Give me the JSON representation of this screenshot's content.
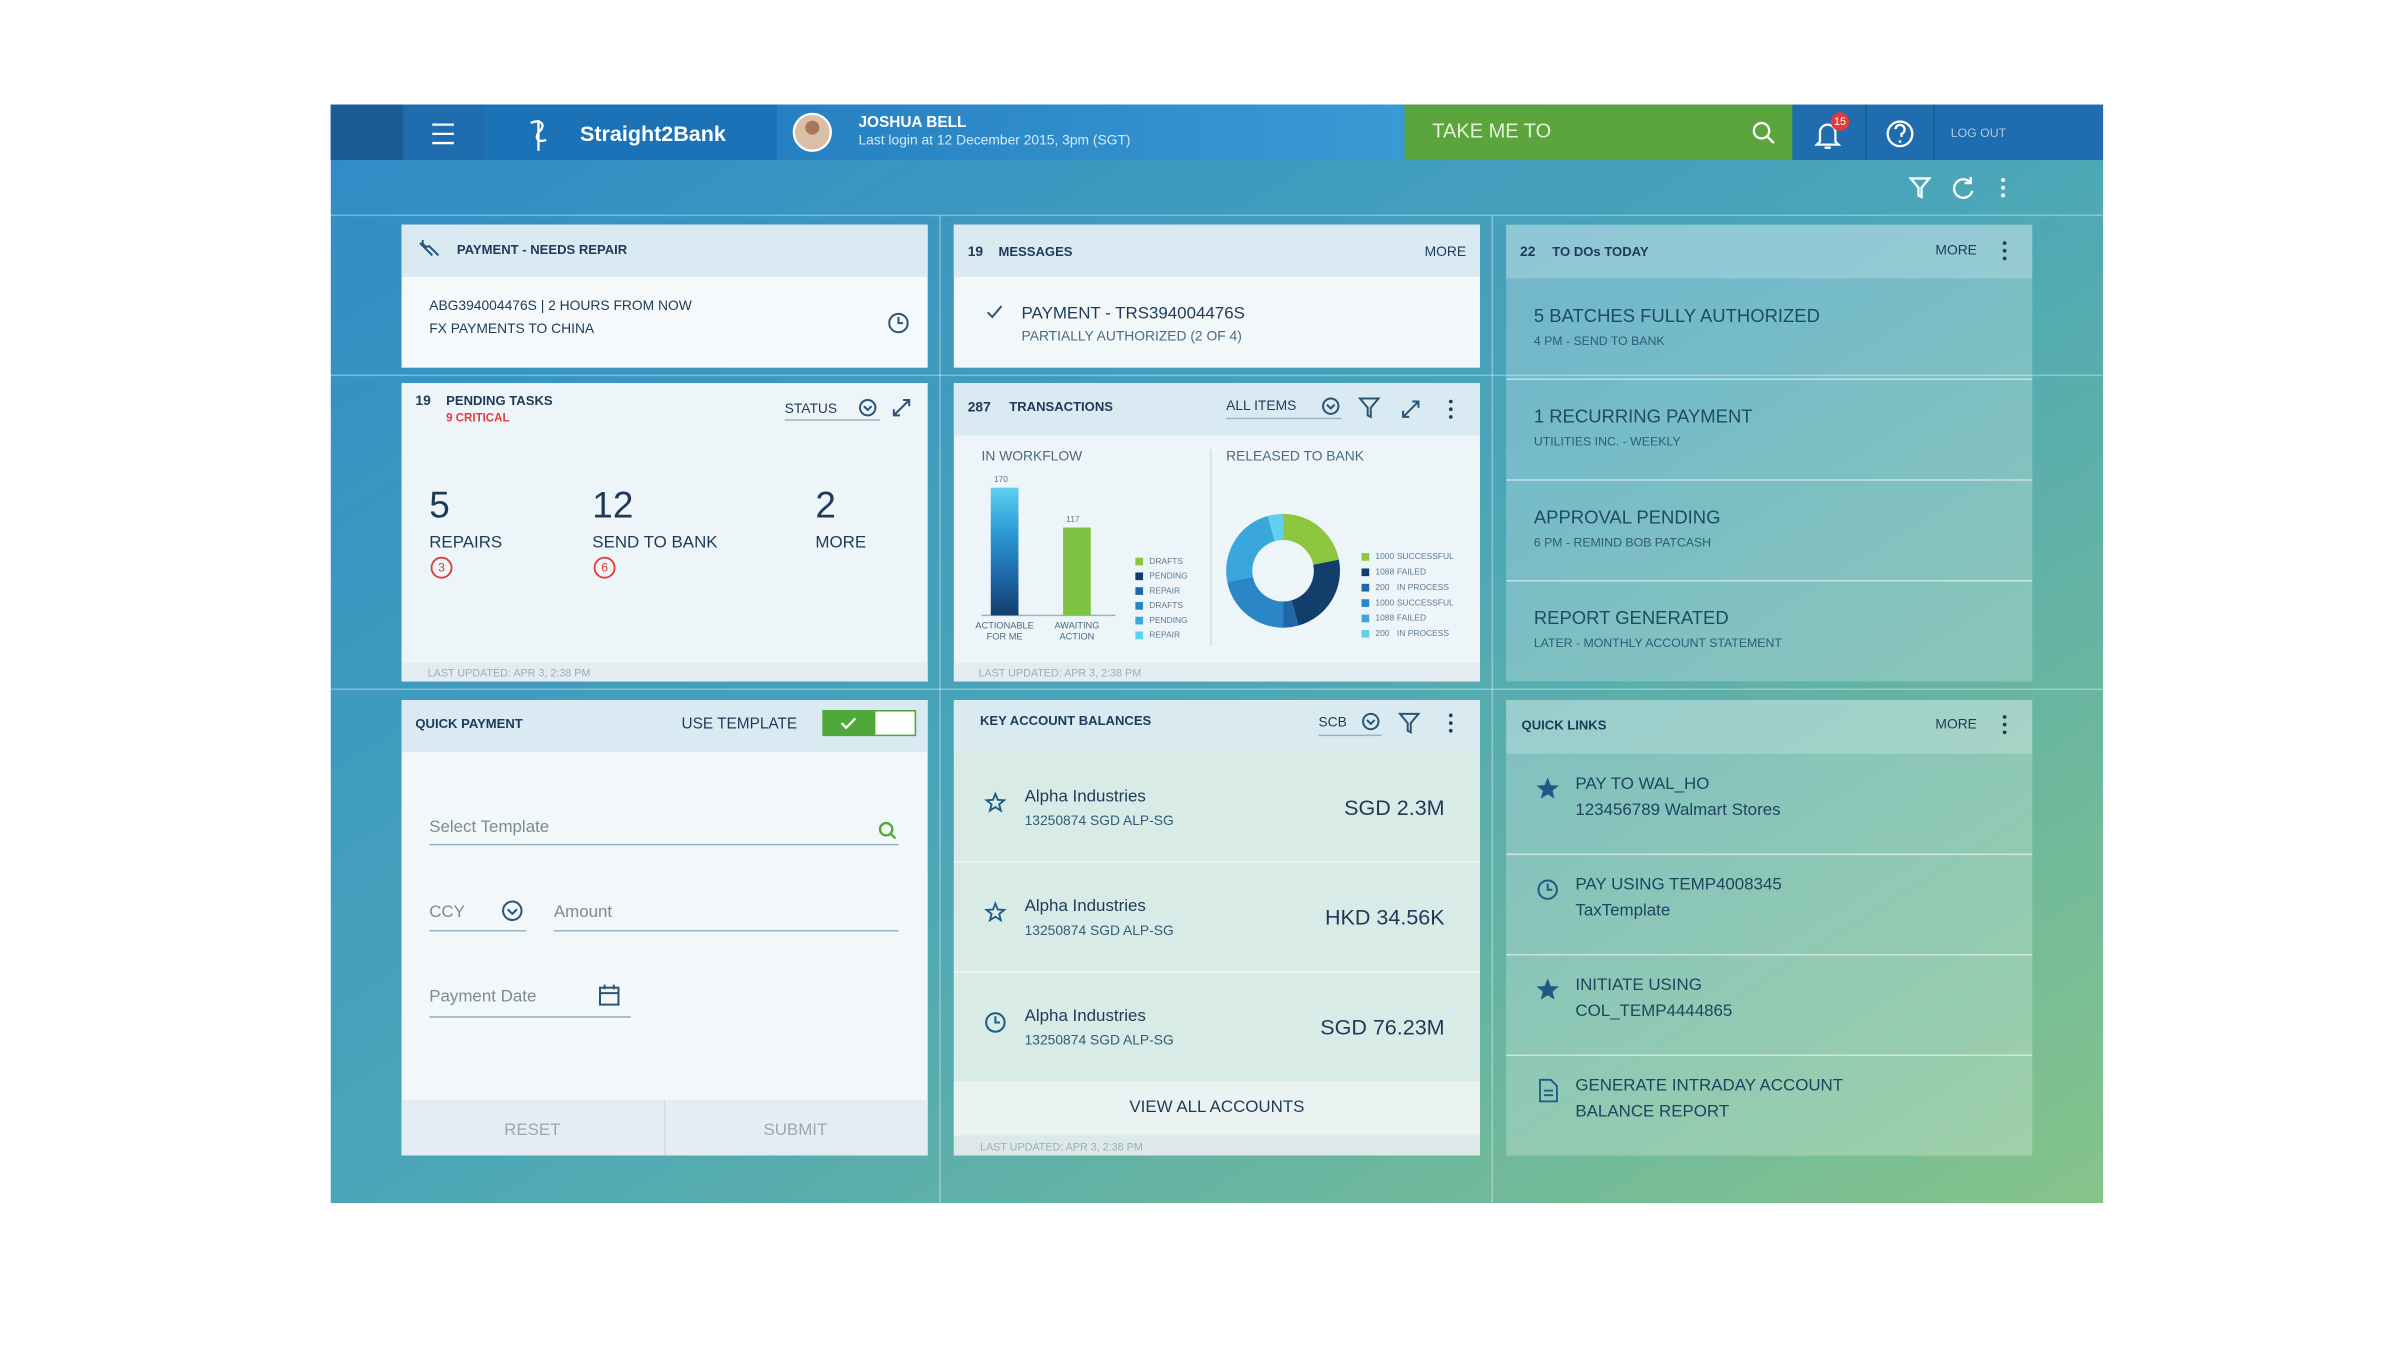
{
  "header": {
    "brand": "Straight2Bank",
    "user_name": "JOSHUA BELL",
    "last_login": "Last login at 12 December 2015, 3pm (SGT)",
    "search": "TAKE ME TO",
    "notifications": "15",
    "logout": "LOG OUT"
  },
  "repair": {
    "title": "PAYMENT - NEEDS REPAIR",
    "line1": "ABG394004476S | 2 HOURS FROM NOW",
    "line2": "FX PAYMENTS TO CHINA"
  },
  "messages": {
    "count": "19",
    "title": "MESSAGES",
    "more": "MORE",
    "item": "PAYMENT - TRS394004476S",
    "sub": "PARTIALLY AUTHORIZED (2 OF 4)"
  },
  "todos": {
    "count": "22",
    "title": "TO DOs TODAY",
    "more": "MORE",
    "items": [
      {
        "title": "5 BATCHES FULLY AUTHORIZED",
        "sub": "4 PM - SEND TO BANK"
      },
      {
        "title": "1 RECURRING PAYMENT",
        "sub": "UTILITIES INC. - WEEKLY"
      },
      {
        "title": "APPROVAL PENDING",
        "sub": "6 PM - REMIND BOB PATCASH"
      },
      {
        "title": "REPORT GENERATED",
        "sub": "LATER - MONTHLY ACCOUNT STATEMENT"
      }
    ]
  },
  "pending": {
    "count": "19",
    "title": "PENDING TASKS",
    "critical": "9 CRITICAL",
    "status": "STATUS",
    "stats": [
      {
        "value": "5",
        "label": "REPAIRS",
        "badge": "3"
      },
      {
        "value": "12",
        "label": "SEND TO BANK",
        "badge": "6"
      },
      {
        "value": "2",
        "label": "MORE"
      }
    ],
    "footer": "LAST UPDATED: APR 3, 2:38 PM"
  },
  "transactions": {
    "count": "287",
    "title": "TRANSACTIONS",
    "filter": "ALL ITEMS",
    "workflow_title": "IN WORKFLOW",
    "released_title": "RELEASED TO BANK",
    "bars": [
      {
        "value": 170,
        "label_lines": [
          "ACTIONABLE",
          "FOR ME"
        ]
      },
      {
        "value": 117,
        "label_lines": [
          "AWAITING",
          "ACTION"
        ],
        "color": "#7dc242"
      }
    ],
    "bar_legend": [
      {
        "label": "DRAFTS",
        "color": "#8cc63f"
      },
      {
        "label": "PENDING",
        "color": "#123e6b"
      },
      {
        "label": "REPAIR",
        "color": "#1f67a8"
      },
      {
        "label": "DRAFTS",
        "color": "#2a86c6"
      },
      {
        "label": "PENDING",
        "color": "#39a6dc"
      },
      {
        "label": "REPAIR",
        "color": "#5fd0f0"
      }
    ],
    "donut": [
      {
        "value": 1000,
        "label": "SUCCESSFUL",
        "color": "#8cc63f"
      },
      {
        "value": 1088,
        "label": "FAILED",
        "color": "#123e6b"
      },
      {
        "value": 200,
        "label": "IN PROCESS",
        "color": "#1f67a8"
      },
      {
        "value": 1000,
        "label": "SUCCESSFUL",
        "color": "#2a86c6"
      },
      {
        "value": 1088,
        "label": "FAILED",
        "color": "#39a6dc"
      },
      {
        "value": 200,
        "label": "IN PROCESS",
        "color": "#5fd0f0"
      }
    ],
    "footer": "LAST UPDATED: APR 3, 2:38 PM"
  },
  "quick_payment": {
    "title": "QUICK PAYMENT",
    "use_template": "USE TEMPLATE",
    "template_field": "Select Template",
    "ccy_field": "CCY",
    "amount_field": "Amount",
    "date_field": "Payment Date",
    "reset": "RESET",
    "submit": "SUBMIT"
  },
  "balances": {
    "title": "KEY ACCOUNT BALANCES",
    "bank": "SCB",
    "accounts": [
      {
        "name": "Alpha Industries",
        "number": "13250874 SGD ALP-SG",
        "balance": "SGD 2.3M"
      },
      {
        "name": "Alpha Industries",
        "number": "13250874 SGD ALP-SG",
        "balance": "HKD 34.56K"
      },
      {
        "name": "Alpha Industries",
        "number": "13250874 SGD ALP-SG",
        "balance": "SGD 76.23M"
      }
    ],
    "view_all": "VIEW ALL ACCOUNTS",
    "footer": "LAST UPDATED: APR 3, 2:38 PM"
  },
  "quick_links": {
    "title": "QUICK LINKS",
    "more": "MORE",
    "items": [
      {
        "line1": "PAY TO WAL_HO",
        "line2": "123456789 Walmart Stores"
      },
      {
        "line1": "PAY USING TEMP4008345",
        "line2": "TaxTemplate"
      },
      {
        "line1": "INITIATE USING",
        "line2": "COL_TEMP4444865"
      },
      {
        "line1": "GENERATE INTRADAY ACCOUNT",
        "line2": "BALANCE REPORT"
      }
    ]
  }
}
